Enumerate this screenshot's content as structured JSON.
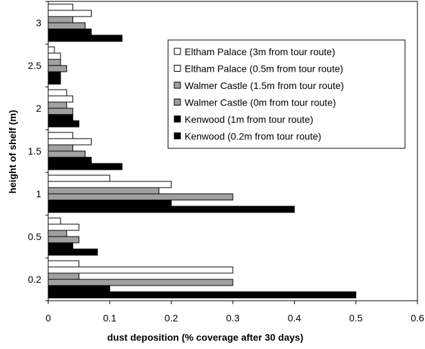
{
  "chart_data": {
    "type": "bar",
    "orientation": "horizontal",
    "categories": [
      "0.2",
      "0.5",
      "1",
      "1.5",
      "2",
      "2.5",
      "3"
    ],
    "series": [
      {
        "name": "Eltham Palace (3m from tour route)",
        "color": "#ffffff",
        "values": [
          0.05,
          0.02,
          0.1,
          0.04,
          0.03,
          0.01,
          0.04
        ]
      },
      {
        "name": "Eltham Palace (0.5m from tour route)",
        "color": "#ffffff",
        "values": [
          0.3,
          0.05,
          0.2,
          0.07,
          0.04,
          0.02,
          0.07
        ]
      },
      {
        "name": "Walmer Castle (1.5m from tour route)",
        "color": "#a0a0a0",
        "values": [
          0.05,
          0.03,
          0.18,
          0.04,
          0.03,
          0.02,
          0.04
        ]
      },
      {
        "name": "Walmer Castle (0m from tour route)",
        "color": "#a0a0a0",
        "values": [
          0.3,
          0.05,
          0.3,
          0.06,
          0.04,
          0.03,
          0.06
        ]
      },
      {
        "name": "Kenwood (1m from tour route)",
        "color": "#000000",
        "values": [
          0.1,
          0.04,
          0.2,
          0.07,
          0.04,
          0.02,
          0.07
        ]
      },
      {
        "name": "Kenwood (0.2m from tour route)",
        "color": "#000000",
        "values": [
          0.5,
          0.08,
          0.4,
          0.12,
          0.05,
          0.02,
          0.12
        ]
      }
    ],
    "xlabel": "dust deposition (% coverage after 30 days)",
    "ylabel": "height of shelf (m)",
    "xlim": [
      0,
      0.6
    ],
    "xticks": [
      "0",
      "0.1",
      "0.2",
      "0.3",
      "0.4",
      "0.5",
      "0.6"
    ],
    "grid": false,
    "legend_position": "upper-right"
  }
}
